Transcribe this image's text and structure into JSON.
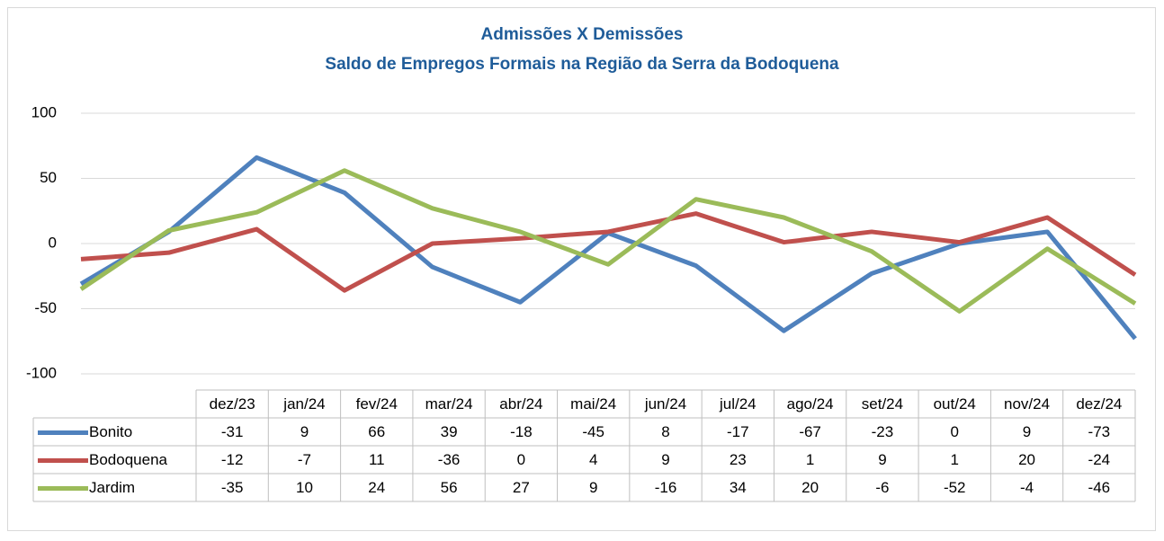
{
  "chart_data": {
    "type": "line",
    "title": "Admissões X Demissões",
    "subtitle": "Saldo de Empregos Formais na Região da Serra da Bodoquena",
    "categories": [
      "dez/23",
      "jan/24",
      "fev/24",
      "mar/24",
      "abr/24",
      "mai/24",
      "jun/24",
      "jul/24",
      "ago/24",
      "set/24",
      "out/24",
      "nov/24",
      "dez/24"
    ],
    "series": [
      {
        "name": "Bonito",
        "color": "#4f81bd",
        "values": [
          -31,
          9,
          66,
          39,
          -18,
          -45,
          8,
          -17,
          -67,
          -23,
          0,
          9,
          -73
        ]
      },
      {
        "name": "Bodoquena",
        "color": "#c0504d",
        "values": [
          -12,
          -7,
          11,
          -36,
          0,
          4,
          9,
          23,
          1,
          9,
          1,
          20,
          -24
        ]
      },
      {
        "name": "Jardim",
        "color": "#9bbb59",
        "values": [
          -35,
          10,
          24,
          56,
          27,
          9,
          -16,
          34,
          20,
          -6,
          -52,
          -4,
          -46
        ]
      }
    ],
    "ylim": [
      -100,
      100
    ],
    "yticks": [
      -100,
      -50,
      0,
      50,
      100
    ],
    "grid": true,
    "data_table": true
  }
}
